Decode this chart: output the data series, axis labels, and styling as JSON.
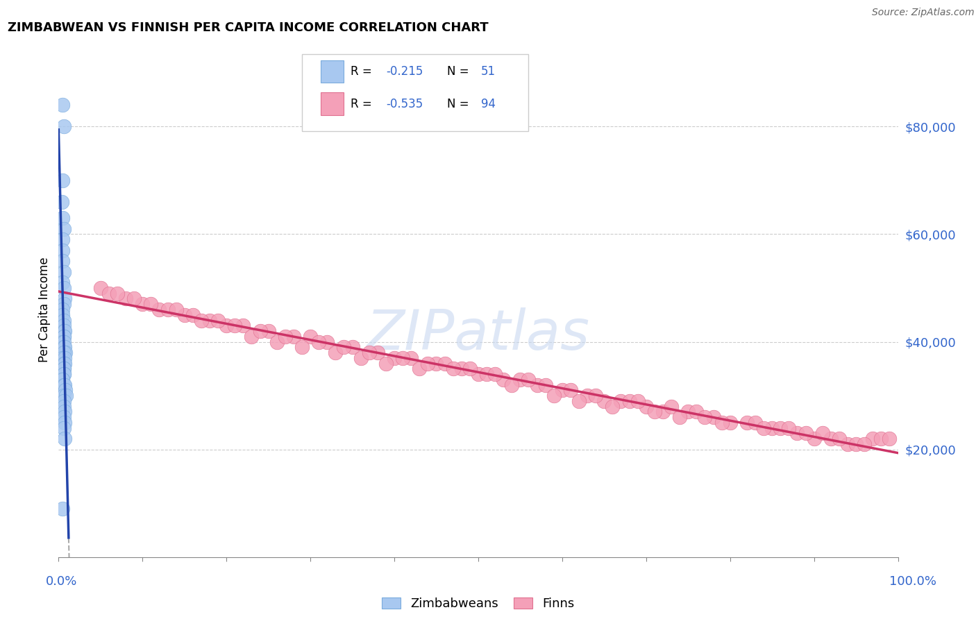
{
  "title": "ZIMBABWEAN VS FINNISH PER CAPITA INCOME CORRELATION CHART",
  "source": "Source: ZipAtlas.com",
  "ylabel": "Per Capita Income",
  "ytick_labels": [
    "$20,000",
    "$40,000",
    "$60,000",
    "$80,000"
  ],
  "ytick_values": [
    20000,
    40000,
    60000,
    80000
  ],
  "xlim": [
    0,
    1
  ],
  "ylim": [
    0,
    92000
  ],
  "legend_r_blue": "-0.215",
  "legend_n_blue": "51",
  "legend_r_pink": "-0.535",
  "legend_n_pink": "94",
  "blue_color": "#a8c8f0",
  "blue_edge_color": "#7aabdd",
  "pink_color": "#f4a0b8",
  "pink_edge_color": "#e07090",
  "blue_line_color": "#2244aa",
  "pink_line_color": "#cc3366",
  "dashed_line_color": "#aaaaaa",
  "watermark": "ZIPatlas",
  "watermark_color": "#c8d8f0",
  "zimbabwean_x": [
    0.005,
    0.006,
    0.005,
    0.004,
    0.005,
    0.006,
    0.005,
    0.005,
    0.005,
    0.006,
    0.005,
    0.006,
    0.007,
    0.006,
    0.005,
    0.005,
    0.006,
    0.006,
    0.006,
    0.007,
    0.006,
    0.006,
    0.005,
    0.006,
    0.006,
    0.007,
    0.008,
    0.006,
    0.005,
    0.007,
    0.006,
    0.007,
    0.006,
    0.006,
    0.006,
    0.006,
    0.005,
    0.005,
    0.006,
    0.007,
    0.008,
    0.006,
    0.009,
    0.006,
    0.006,
    0.007,
    0.006,
    0.007,
    0.006,
    0.007,
    0.005
  ],
  "zimbabwean_y": [
    84000,
    80000,
    70000,
    66000,
    63000,
    61000,
    59000,
    57000,
    55000,
    53000,
    51000,
    50000,
    48000,
    47000,
    46000,
    45000,
    44000,
    43000,
    42000,
    42000,
    41000,
    41000,
    40000,
    40000,
    39000,
    39000,
    38000,
    38000,
    37000,
    37000,
    36000,
    36000,
    35000,
    35000,
    34000,
    34000,
    33000,
    33000,
    32000,
    32000,
    31000,
    30000,
    30000,
    29000,
    28000,
    27000,
    26000,
    25000,
    24000,
    22000,
    9000
  ],
  "finn_x": [
    0.05,
    0.08,
    0.1,
    0.06,
    0.12,
    0.09,
    0.15,
    0.11,
    0.13,
    0.07,
    0.18,
    0.16,
    0.14,
    0.2,
    0.17,
    0.22,
    0.19,
    0.25,
    0.21,
    0.23,
    0.28,
    0.24,
    0.26,
    0.3,
    0.27,
    0.29,
    0.32,
    0.35,
    0.31,
    0.33,
    0.38,
    0.36,
    0.34,
    0.4,
    0.37,
    0.39,
    0.42,
    0.45,
    0.41,
    0.43,
    0.48,
    0.46,
    0.5,
    0.47,
    0.44,
    0.53,
    0.51,
    0.55,
    0.49,
    0.57,
    0.52,
    0.6,
    0.56,
    0.54,
    0.63,
    0.58,
    0.65,
    0.61,
    0.67,
    0.7,
    0.64,
    0.68,
    0.72,
    0.75,
    0.69,
    0.73,
    0.78,
    0.76,
    0.8,
    0.77,
    0.82,
    0.85,
    0.83,
    0.88,
    0.86,
    0.9,
    0.87,
    0.92,
    0.89,
    0.94,
    0.91,
    0.95,
    0.97,
    0.93,
    0.96,
    0.98,
    0.62,
    0.66,
    0.71,
    0.74,
    0.79,
    0.84,
    0.99,
    0.59
  ],
  "finn_y": [
    50000,
    48000,
    47000,
    49000,
    46000,
    48000,
    45000,
    47000,
    46000,
    49000,
    44000,
    45000,
    46000,
    43000,
    44000,
    43000,
    44000,
    42000,
    43000,
    41000,
    41000,
    42000,
    40000,
    41000,
    41000,
    39000,
    40000,
    39000,
    40000,
    38000,
    38000,
    37000,
    39000,
    37000,
    38000,
    36000,
    37000,
    36000,
    37000,
    35000,
    35000,
    36000,
    34000,
    35000,
    36000,
    33000,
    34000,
    33000,
    35000,
    32000,
    34000,
    31000,
    33000,
    32000,
    30000,
    32000,
    29000,
    31000,
    29000,
    28000,
    30000,
    29000,
    27000,
    27000,
    29000,
    28000,
    26000,
    27000,
    25000,
    26000,
    25000,
    24000,
    25000,
    23000,
    24000,
    22000,
    24000,
    22000,
    23000,
    21000,
    23000,
    21000,
    22000,
    22000,
    21000,
    22000,
    29000,
    28000,
    27000,
    26000,
    25000,
    24000,
    22000,
    30000
  ]
}
